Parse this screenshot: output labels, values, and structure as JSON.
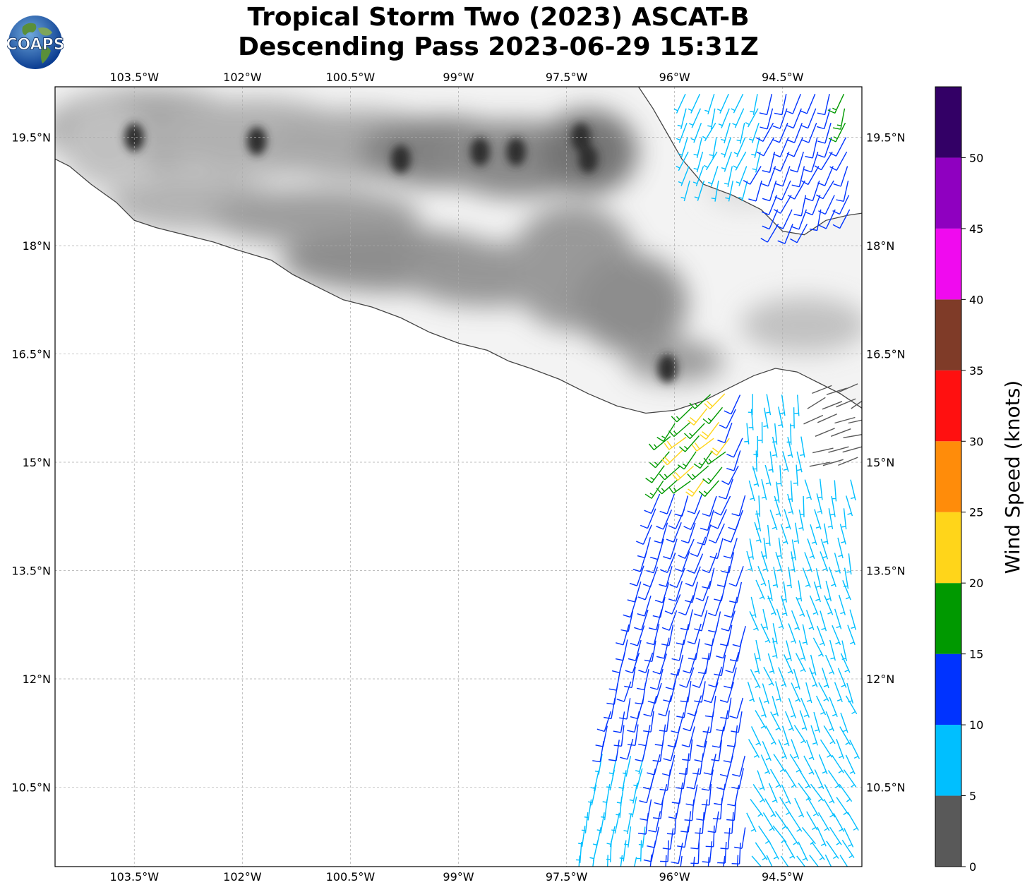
{
  "title": {
    "line1": "Tropical Storm Two (2023) ASCAT-B",
    "line2": "Descending Pass 2023-06-29 15:31Z"
  },
  "logo": {
    "text": "COAPS",
    "icon": "globe-logo"
  },
  "map": {
    "lon_range": [
      -104.6,
      -93.4
    ],
    "lat_range": [
      9.4,
      20.2
    ],
    "lon_ticks": [
      {
        "value": -103.5,
        "label": "103.5°W"
      },
      {
        "value": -102,
        "label": "102°W"
      },
      {
        "value": -100.5,
        "label": "100.5°W"
      },
      {
        "value": -99,
        "label": "99°W"
      },
      {
        "value": -97.5,
        "label": "97.5°W"
      },
      {
        "value": -96,
        "label": "96°W"
      },
      {
        "value": -94.5,
        "label": "94.5°W"
      }
    ],
    "lat_ticks": [
      {
        "value": 19.5,
        "label": "19.5°N"
      },
      {
        "value": 18,
        "label": "18°N"
      },
      {
        "value": 16.5,
        "label": "16.5°N"
      },
      {
        "value": 15,
        "label": "15°N"
      },
      {
        "value": 13.5,
        "label": "13.5°N"
      },
      {
        "value": 12,
        "label": "12°N"
      },
      {
        "value": 10.5,
        "label": "10.5°N"
      }
    ],
    "coastline_lonlat": [
      [
        -104.6,
        19.2
      ],
      [
        -104.4,
        19.1
      ],
      [
        -104.1,
        18.85
      ],
      [
        -103.75,
        18.6
      ],
      [
        -103.5,
        18.35
      ],
      [
        -103.2,
        18.25
      ],
      [
        -102.8,
        18.15
      ],
      [
        -102.4,
        18.05
      ],
      [
        -102.1,
        17.95
      ],
      [
        -101.6,
        17.8
      ],
      [
        -101.3,
        17.6
      ],
      [
        -101.0,
        17.45
      ],
      [
        -100.6,
        17.25
      ],
      [
        -100.2,
        17.15
      ],
      [
        -99.8,
        17.0
      ],
      [
        -99.4,
        16.8
      ],
      [
        -99.0,
        16.65
      ],
      [
        -98.6,
        16.55
      ],
      [
        -98.3,
        16.4
      ],
      [
        -98.0,
        16.3
      ],
      [
        -97.6,
        16.15
      ],
      [
        -97.2,
        15.95
      ],
      [
        -96.8,
        15.78
      ],
      [
        -96.4,
        15.68
      ],
      [
        -96.0,
        15.72
      ],
      [
        -95.6,
        15.85
      ],
      [
        -95.2,
        16.05
      ],
      [
        -94.9,
        16.2
      ],
      [
        -94.6,
        16.3
      ],
      [
        -94.3,
        16.25
      ],
      [
        -94.0,
        16.1
      ],
      [
        -93.7,
        15.95
      ],
      [
        -93.4,
        15.75
      ]
    ],
    "gulf_coast_lonlat": [
      [
        -96.5,
        20.2
      ],
      [
        -96.3,
        19.9
      ],
      [
        -96.1,
        19.55
      ],
      [
        -95.9,
        19.2
      ],
      [
        -95.6,
        18.85
      ],
      [
        -95.2,
        18.7
      ],
      [
        -94.8,
        18.5
      ],
      [
        -94.5,
        18.2
      ],
      [
        -94.2,
        18.15
      ],
      [
        -93.9,
        18.35
      ],
      [
        -93.6,
        18.42
      ],
      [
        -93.4,
        18.45
      ]
    ],
    "wind_scale_note": "",
    "has_elevation_shading": true,
    "grid": true
  },
  "colorbar": {
    "label": "Wind Speed (knots)",
    "ticks": [
      "0",
      "5",
      "10",
      "15",
      "20",
      "25",
      "30",
      "35",
      "40",
      "45",
      "50"
    ],
    "bins": [
      {
        "from": 0,
        "to": 5,
        "color": "#595959"
      },
      {
        "from": 5,
        "to": 10,
        "color": "#00bfff"
      },
      {
        "from": 10,
        "to": 15,
        "color": "#0033ff"
      },
      {
        "from": 15,
        "to": 20,
        "color": "#009900"
      },
      {
        "from": 20,
        "to": 25,
        "color": "#ffd51a"
      },
      {
        "from": 25,
        "to": 30,
        "color": "#ff8c0a"
      },
      {
        "from": 30,
        "to": 35,
        "color": "#ff1010"
      },
      {
        "from": 35,
        "to": 40,
        "color": "#7f3b28"
      },
      {
        "from": 40,
        "to": 45,
        "color": "#f00aef"
      },
      {
        "from": 45,
        "to": 50,
        "color": "#8f00c0"
      },
      {
        "from": 50,
        "to": 55,
        "color": "#330066"
      }
    ]
  }
}
